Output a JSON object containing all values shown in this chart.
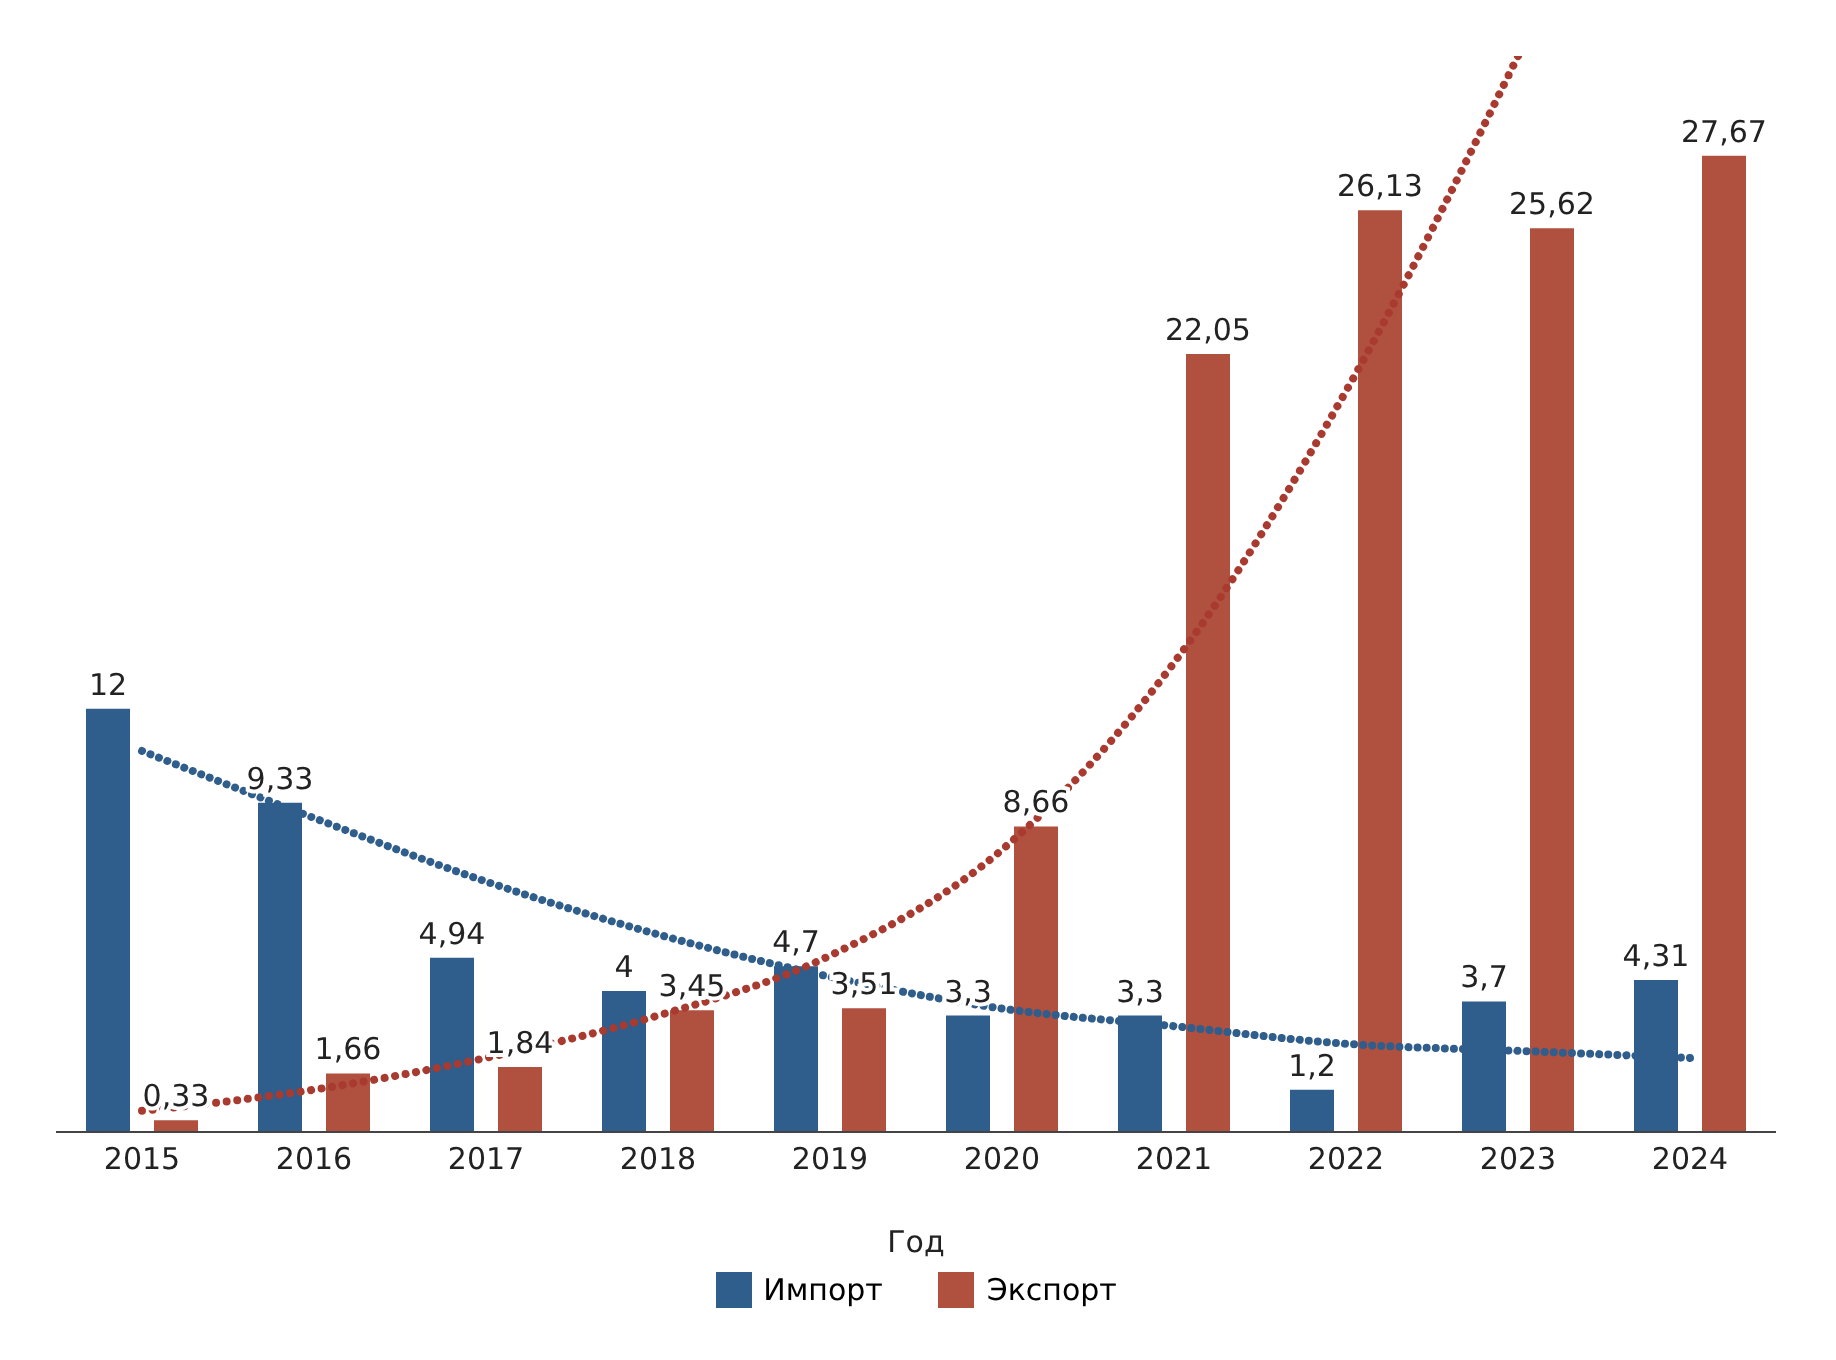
{
  "chart_data": {
    "type": "bar",
    "xlabel": "Год",
    "categories": [
      "2015",
      "2016",
      "2017",
      "2018",
      "2019",
      "2020",
      "2021",
      "2022",
      "2023",
      "2024"
    ],
    "legend": "bottom",
    "marker": "none",
    "series": [
      {
        "name": "Импорт",
        "color": "#2f5d8c",
        "values": [
          12,
          9.33,
          4.94,
          4,
          4.7,
          3.3,
          3.3,
          1.2,
          3.7,
          4.31
        ],
        "value_labels": [
          "12",
          "9,33",
          "4,94",
          "4",
          "4,7",
          "3,3",
          "3,3",
          "1,2",
          "3,7",
          "4,31"
        ]
      },
      {
        "name": "Экспорт",
        "color": "#b0503f",
        "values": [
          0.33,
          1.66,
          1.84,
          3.45,
          3.51,
          8.66,
          22.05,
          26.13,
          25.62,
          27.67
        ],
        "value_labels": [
          "0,33",
          "1,66",
          "1,84",
          "3,45",
          "3,51",
          "8,66",
          "22,05",
          "26,13",
          "25,62",
          "27,67"
        ]
      },
      {
        "type": "line",
        "color": "#2f5d8c",
        "line_style": "dotted",
        "values": [
          10.8,
          8.9,
          7.1,
          5.6,
          4.4,
          3.5,
          3.0,
          2.5,
          2.3,
          2.1
        ]
      },
      {
        "type": "line",
        "color": "#a83a30",
        "line_style": "dotted",
        "values": [
          0.6,
          1.2,
          2.1,
          3.3,
          5.0,
          8.0,
          13.3,
          21,
          30.5,
          null
        ]
      }
    ]
  }
}
